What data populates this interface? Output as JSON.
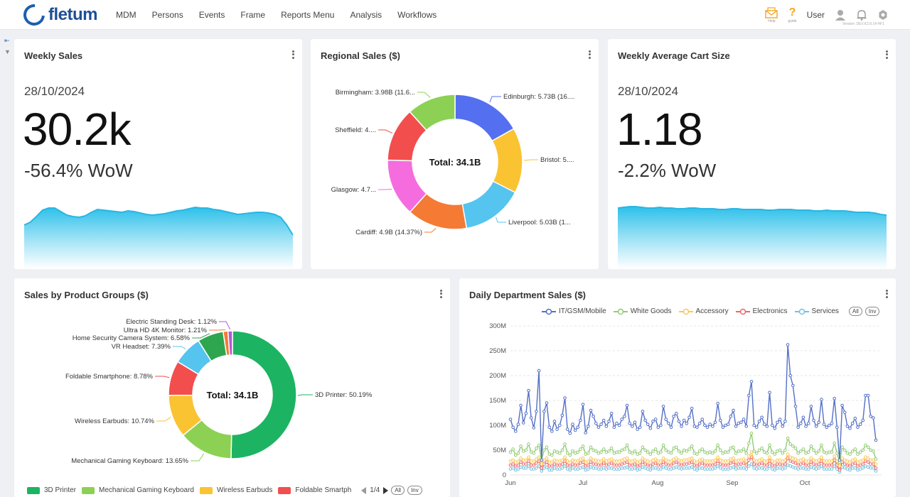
{
  "app": {
    "brand": "fletum",
    "nav": [
      "MDM",
      "Persons",
      "Events",
      "Frame",
      "Reports Menu",
      "Analysis",
      "Workflows"
    ],
    "help_label": "Help",
    "guide_label": "guide",
    "user_label": "User",
    "version": "Version: DEV.K2.8.14-HF1"
  },
  "weekly_sales": {
    "title": "Weekly Sales",
    "date": "28/10/2024",
    "value": "30.2k",
    "change": "-56.4% WoW",
    "spark": [
      62,
      66,
      74,
      83,
      86,
      86,
      81,
      76,
      74,
      73,
      75,
      80,
      84,
      83,
      82,
      81,
      80,
      82,
      81,
      79,
      77,
      76,
      77,
      78,
      80,
      82,
      83,
      85,
      87,
      86,
      86,
      84,
      83,
      81,
      79,
      77,
      78,
      79,
      80,
      80,
      79,
      77,
      73,
      62,
      48
    ]
  },
  "regional_sales": {
    "title": "Regional Sales ($)",
    "center": "Total: 34.1B",
    "slices": [
      {
        "name": "Edinburgh",
        "value": 5.73,
        "label": "Edinburgh: 5.73B (16....",
        "color": "#5470f0"
      },
      {
        "name": "Bristol",
        "value": 5.35,
        "label": "Bristol: 5....",
        "color": "#fac332"
      },
      {
        "name": "Liverpool",
        "value": 5.03,
        "label": "Liverpool: 5.03B (1...",
        "color": "#55c4ef"
      },
      {
        "name": "Cardiff",
        "value": 4.9,
        "label": "Cardiff: 4.9B (14.37%)",
        "color": "#f57a34"
      },
      {
        "name": "Glasgow",
        "value": 4.7,
        "label": "Glasgow: 4.7...",
        "color": "#f56cdf"
      },
      {
        "name": "Sheffield",
        "value": 4.4,
        "label": "Sheffield: 4....",
        "color": "#f24e4e"
      },
      {
        "name": "Birmingham",
        "value": 3.98,
        "label": "Birmingham: 3.98B (11.6...",
        "color": "#8cd154"
      }
    ]
  },
  "weekly_cart": {
    "title": "Weekly Average Cart Size",
    "date": "28/10/2024",
    "value": "1.18",
    "change": "-2.2% WoW",
    "spark": [
      86,
      87,
      88,
      88,
      87,
      86,
      86,
      87,
      86,
      86,
      85,
      85,
      86,
      86,
      85,
      85,
      85,
      84,
      84,
      85,
      85,
      84,
      84,
      84,
      84,
      83,
      83,
      84,
      84,
      84,
      83,
      83,
      83,
      82,
      82,
      83,
      82,
      82,
      82,
      81,
      80,
      80,
      80,
      79,
      77,
      76
    ]
  },
  "product_groups": {
    "title": "Sales by Product Groups ($)",
    "center": "Total: 34.1B",
    "slices": [
      {
        "name": "3D Printer",
        "value": 50.19,
        "label": "3D Printer: 50.19%",
        "color": "#1cb462"
      },
      {
        "name": "Mechanical Gaming Keyboard",
        "value": 13.65,
        "label": "Mechanical Gaming Keyboard: 13.65%",
        "color": "#8cd154"
      },
      {
        "name": "Wireless Earbuds",
        "value": 10.74,
        "label": "Wireless Earbuds: 10.74%",
        "color": "#fac332"
      },
      {
        "name": "Foldable Smartphone",
        "value": 8.78,
        "label": "Foldable Smartphone: 8.78%",
        "color": "#f24e4e"
      },
      {
        "name": "VR Headset",
        "value": 7.39,
        "label": "VR Headset: 7.39%",
        "color": "#55c4ef"
      },
      {
        "name": "Home Security Camera System",
        "value": 6.58,
        "label": "Home Security Camera System: 6.58%",
        "color": "#2ea64f"
      },
      {
        "name": "Ultra HD 4K Monitor",
        "value": 1.21,
        "label": "Ultra HD 4K Monitor: 1.21%",
        "color": "#f57a34"
      },
      {
        "name": "Electric Standing Desk",
        "value": 1.12,
        "label": "Electric Standing Desk: 1.12%",
        "color": "#b05ad6"
      }
    ],
    "legend": [
      "3D Printer",
      "Mechanical Gaming Keyboard",
      "Wireless Earbuds",
      "Foldable Smartph"
    ],
    "page": "1/4",
    "all_label": "All",
    "inv_label": "Inv"
  },
  "daily_department": {
    "title": "Daily Department Sales ($)",
    "all_label": "All",
    "inv_label": "Inv"
  },
  "chart_data": {
    "type": "line",
    "title": "Daily Department Sales ($)",
    "x_tick_labels": [
      "Jun",
      "Jul",
      "Aug",
      "Sep",
      "Oct"
    ],
    "y_tick_labels": [
      "0",
      "50M",
      "100M",
      "150M",
      "200M",
      "250M",
      "300M"
    ],
    "ylim": [
      0,
      300
    ],
    "y_unit": "M",
    "grid": "horizontal dashed",
    "legend": "top",
    "series": [
      {
        "name": "IT/GSM/Mobile",
        "color": "#5470c6",
        "values": [
          112,
          96,
          88,
          102,
          140,
          105,
          124,
          170,
          115,
          95,
          128,
          210,
          30,
          128,
          145,
          96,
          88,
          108,
          92,
          100,
          120,
          155,
          92,
          84,
          102,
          90,
          96,
          110,
          142,
          85,
          98,
          130,
          118,
          104,
          96,
          102,
          110,
          98,
          108,
          124,
          96,
          104,
          100,
          112,
          118,
          140,
          104,
          98,
          106,
          92,
          96,
          128,
          110,
          102,
          94,
          108,
          112,
          96,
          100,
          138,
          112,
          104,
          96,
          118,
          124,
          108,
          98,
          110,
          104,
          116,
          134,
          98,
          96,
          104,
          112,
          100,
          96,
          102,
          98,
          106,
          144,
          110,
          96,
          100,
          102,
          118,
          130,
          98,
          104,
          106,
          112,
          98,
          160,
          188,
          100,
          96,
          108,
          116,
          102,
          98,
          166,
          100,
          94,
          106,
          112,
          98,
          108,
          262,
          200,
          180,
          138,
          96,
          104,
          116,
          98,
          104,
          138,
          110,
          98,
          106,
          152,
          102,
          96,
          100,
          104,
          154,
          96,
          30,
          140,
          126,
          98,
          94,
          104,
          114,
          96,
          102,
          110,
          160,
          160,
          118,
          115,
          70
        ]
      },
      {
        "name": "White Goods",
        "color": "#91cc75",
        "values": [
          46,
          52,
          40,
          44,
          58,
          48,
          50,
          62,
          46,
          44,
          54,
          60,
          30,
          50,
          56,
          42,
          40,
          48,
          46,
          44,
          50,
          62,
          44,
          40,
          48,
          44,
          46,
          52,
          58,
          42,
          44,
          56,
          50,
          48,
          44,
          46,
          52,
          46,
          48,
          54,
          44,
          46,
          46,
          50,
          52,
          60,
          46,
          44,
          48,
          42,
          44,
          56,
          50,
          46,
          42,
          48,
          52,
          44,
          46,
          60,
          50,
          46,
          44,
          54,
          56,
          48,
          44,
          50,
          48,
          52,
          58,
          44,
          42,
          48,
          52,
          46,
          44,
          46,
          44,
          48,
          60,
          50,
          44,
          46,
          46,
          54,
          56,
          44,
          48,
          48,
          52,
          44,
          64,
          84,
          48,
          44,
          50,
          54,
          46,
          44,
          60,
          46,
          42,
          48,
          50,
          44,
          50,
          74,
          62,
          58,
          54,
          44,
          48,
          52,
          44,
          46,
          58,
          50,
          44,
          48,
          60,
          46,
          44,
          46,
          46,
          64,
          44,
          26,
          56,
          50,
          44,
          42,
          48,
          52,
          42,
          46,
          50,
          60,
          56,
          50,
          48,
          32
        ]
      },
      {
        "name": "Accessory",
        "color": "#fac858",
        "values": [
          28,
          30,
          26,
          28,
          34,
          30,
          30,
          36,
          28,
          28,
          32,
          36,
          22,
          30,
          34,
          26,
          26,
          30,
          28,
          28,
          30,
          36,
          28,
          26,
          30,
          28,
          28,
          32,
          34,
          26,
          28,
          34,
          30,
          30,
          28,
          28,
          32,
          28,
          30,
          32,
          28,
          28,
          28,
          30,
          32,
          34,
          28,
          28,
          30,
          26,
          28,
          34,
          30,
          28,
          26,
          30,
          32,
          28,
          28,
          34,
          30,
          28,
          28,
          32,
          34,
          30,
          28,
          30,
          30,
          32,
          34,
          28,
          26,
          30,
          32,
          28,
          28,
          28,
          28,
          30,
          36,
          30,
          28,
          28,
          28,
          32,
          34,
          28,
          30,
          30,
          32,
          28,
          38,
          46,
          30,
          28,
          30,
          32,
          28,
          28,
          36,
          28,
          26,
          30,
          30,
          28,
          30,
          42,
          36,
          34,
          32,
          28,
          30,
          32,
          28,
          28,
          34,
          30,
          28,
          30,
          36,
          28,
          28,
          28,
          28,
          38,
          28,
          18,
          34,
          30,
          28,
          26,
          30,
          32,
          26,
          28,
          30,
          36,
          34,
          30,
          30,
          22
        ]
      },
      {
        "name": "Electronics",
        "color": "#ee6666",
        "values": [
          20,
          22,
          18,
          20,
          26,
          22,
          22,
          28,
          20,
          20,
          24,
          28,
          14,
          22,
          26,
          18,
          18,
          22,
          20,
          20,
          22,
          28,
          20,
          18,
          22,
          20,
          20,
          24,
          26,
          18,
          20,
          26,
          22,
          22,
          20,
          20,
          24,
          20,
          22,
          24,
          20,
          20,
          20,
          22,
          24,
          26,
          20,
          20,
          22,
          18,
          20,
          26,
          22,
          20,
          18,
          22,
          24,
          20,
          20,
          26,
          22,
          20,
          20,
          24,
          26,
          22,
          20,
          22,
          22,
          24,
          26,
          20,
          18,
          22,
          24,
          20,
          20,
          20,
          20,
          22,
          28,
          22,
          20,
          20,
          20,
          24,
          26,
          20,
          22,
          22,
          24,
          20,
          30,
          36,
          22,
          20,
          22,
          24,
          20,
          20,
          28,
          20,
          18,
          22,
          22,
          20,
          22,
          34,
          28,
          26,
          24,
          20,
          22,
          24,
          20,
          20,
          26,
          22,
          20,
          22,
          28,
          20,
          20,
          20,
          20,
          30,
          20,
          10,
          26,
          22,
          20,
          18,
          22,
          24,
          18,
          20,
          22,
          28,
          26,
          22,
          22,
          14
        ]
      },
      {
        "name": "Services",
        "color": "#73c0de",
        "values": [
          12,
          14,
          10,
          12,
          16,
          14,
          14,
          18,
          12,
          12,
          14,
          18,
          8,
          14,
          16,
          10,
          10,
          14,
          12,
          12,
          14,
          18,
          12,
          10,
          14,
          12,
          12,
          14,
          16,
          10,
          12,
          16,
          14,
          14,
          12,
          12,
          14,
          12,
          14,
          14,
          12,
          12,
          12,
          14,
          14,
          16,
          12,
          12,
          14,
          10,
          12,
          16,
          14,
          12,
          10,
          14,
          14,
          12,
          12,
          16,
          14,
          12,
          12,
          14,
          16,
          14,
          12,
          14,
          14,
          14,
          16,
          12,
          10,
          14,
          14,
          12,
          12,
          12,
          12,
          14,
          18,
          14,
          12,
          12,
          12,
          14,
          16,
          12,
          14,
          14,
          14,
          12,
          18,
          22,
          14,
          12,
          14,
          14,
          12,
          12,
          18,
          12,
          10,
          14,
          14,
          12,
          14,
          20,
          18,
          16,
          14,
          12,
          14,
          14,
          12,
          12,
          16,
          14,
          12,
          14,
          18,
          12,
          12,
          12,
          12,
          18,
          12,
          6,
          16,
          14,
          12,
          10,
          14,
          14,
          10,
          12,
          14,
          18,
          16,
          14,
          14,
          8
        ]
      }
    ]
  }
}
